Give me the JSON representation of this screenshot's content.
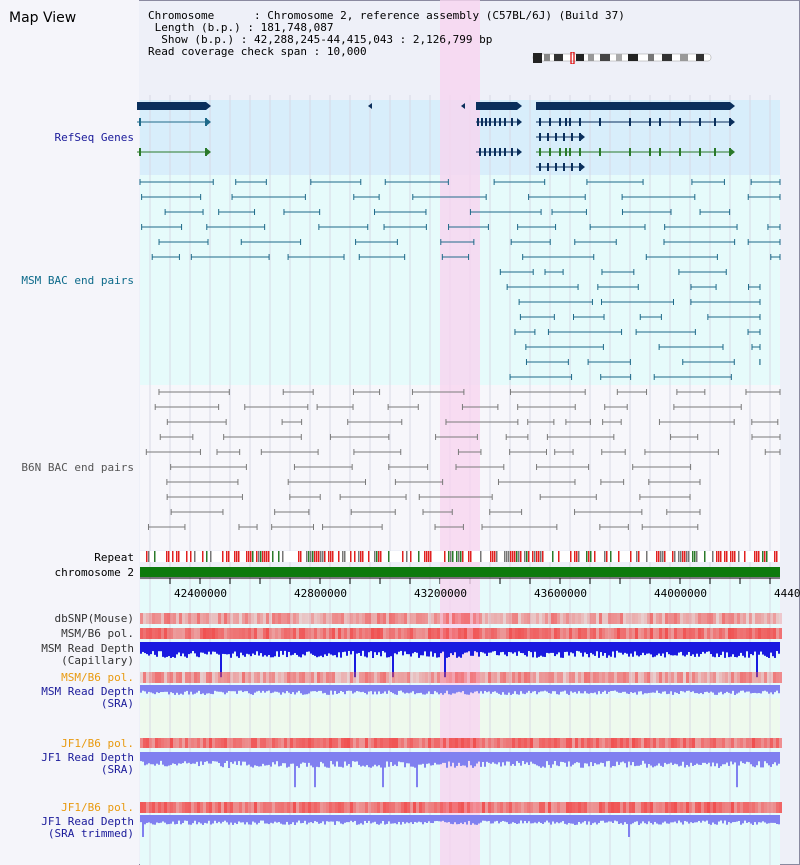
{
  "header": {
    "title": "Map View",
    "chromosome_label": "Chromosome",
    "chromosome_value": "Chromosome 2, reference assembly (C57BL/6J) (Build 37)",
    "length_label": "Length (b.p.)",
    "length_value": "181,748,087",
    "show_label": "Show (b.p.)",
    "show_value": "42,288,245-44,415,043 : 2,126,799 bp",
    "coverage_label": "Read coverage check span",
    "coverage_value": "10,000"
  },
  "tracks": {
    "refseq": "RefSeq Genes",
    "msm_bac": "MSM BAC end pairs",
    "b6n_bac": "B6N BAC end pairs",
    "repeat": "Repeat",
    "chromosome": "chromosome 2",
    "dbsnp": "dbSNP(Mouse)",
    "msm_b6_pol_1": "MSM/B6 pol.",
    "msm_read_cap_1": "MSM Read Depth",
    "msm_read_cap_2": "(Capillary)",
    "msm_b6_pol_2": "MSM/B6 pol.",
    "msm_read_sra_1": "MSM Read Depth",
    "msm_read_sra_2": "(SRA)",
    "jf1_pol_1": "JF1/B6 pol.",
    "jf1_read_sra_1": "JF1 Read Depth",
    "jf1_read_sra_2": "(SRA)",
    "jf1_pol_2": "JF1/B6 pol.",
    "jf1_read_trim_1": "JF1 Read Depth",
    "jf1_read_trim_2": "(SRA trimmed)"
  },
  "axis_ticks": [
    "42400000",
    "42800000",
    "43200000",
    "43600000",
    "44000000",
    "4440"
  ],
  "colors": {
    "highlight": "#f8d4f0",
    "refseq_bg": "#d8eefb",
    "msm_bg": "#e6fbfb",
    "b6n_bg": "#f7f7fb",
    "gene": "#0a2f5c",
    "msm": "#1f6a8a",
    "b6n": "#7a7a7a",
    "chromosome": "#0d7a0d",
    "snp": "#f05050",
    "depth_cap": "#1a1ae0",
    "depth_sra": "#8080f0",
    "label_navy": "#1a1a9a",
    "label_teal": "#0d6a8a",
    "label_orange": "#e89a10"
  }
}
